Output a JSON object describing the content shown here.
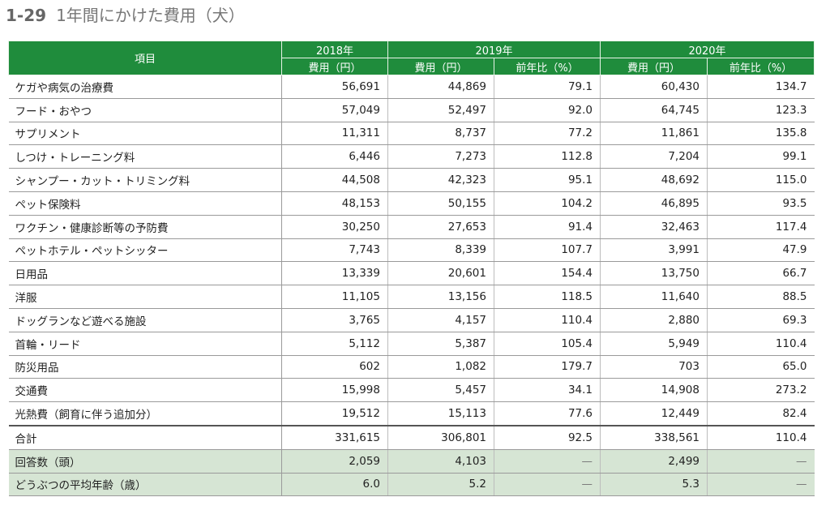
{
  "header": {
    "number": "1-29",
    "title": "1年間にかけた費用（犬）"
  },
  "table": {
    "item_header": "項目",
    "years": [
      "2018年",
      "2019年",
      "2020年"
    ],
    "sub_headers": {
      "cost": "費用（円）",
      "ratio": "前年比（%）"
    },
    "rows": [
      [
        "ケガや病気の治療費",
        "56,691",
        "44,869",
        "79.1",
        "60,430",
        "134.7"
      ],
      [
        "フード・おやつ",
        "57,049",
        "52,497",
        "92.0",
        "64,745",
        "123.3"
      ],
      [
        "サプリメント",
        "11,311",
        "8,737",
        "77.2",
        "11,861",
        "135.8"
      ],
      [
        "しつけ・トレーニング料",
        "6,446",
        "7,273",
        "112.8",
        "7,204",
        "99.1"
      ],
      [
        "シャンプー・カット・トリミング料",
        "44,508",
        "42,323",
        "95.1",
        "48,692",
        "115.0"
      ],
      [
        "ペット保険料",
        "48,153",
        "50,155",
        "104.2",
        "46,895",
        "93.5"
      ],
      [
        "ワクチン・健康診断等の予防費",
        "30,250",
        "27,653",
        "91.4",
        "32,463",
        "117.4"
      ],
      [
        "ペットホテル・ペットシッター",
        "7,743",
        "8,339",
        "107.7",
        "3,991",
        "47.9"
      ],
      [
        "日用品",
        "13,339",
        "20,601",
        "154.4",
        "13,750",
        "66.7"
      ],
      [
        "洋服",
        "11,105",
        "13,156",
        "118.5",
        "11,640",
        "88.5"
      ],
      [
        "ドッグランなど遊べる施設",
        "3,765",
        "4,157",
        "110.4",
        "2,880",
        "69.3"
      ],
      [
        "首輪・リード",
        "5,112",
        "5,387",
        "105.4",
        "5,949",
        "110.4"
      ],
      [
        "防災用品",
        "602",
        "1,082",
        "179.7",
        "703",
        "65.0"
      ],
      [
        "交通費",
        "15,998",
        "5,457",
        "34.1",
        "14,908",
        "273.2"
      ],
      [
        "光熱費（飼育に伴う追加分）",
        "19,512",
        "15,113",
        "77.6",
        "12,449",
        "82.4"
      ]
    ],
    "total": [
      "合計",
      "331,615",
      "306,801",
      "92.5",
      "338,561",
      "110.4"
    ],
    "extra_rows": [
      [
        "回答数（頭）",
        "2,059",
        "4,103",
        "—",
        "2,499",
        "—"
      ],
      [
        "どうぶつの平均年齢（歳）",
        "6.0",
        "5.2",
        "—",
        "5.3",
        "—"
      ]
    ]
  },
  "colors": {
    "header_green": "#1f8c3c",
    "summary_row_bg": "#d6e5d4"
  }
}
